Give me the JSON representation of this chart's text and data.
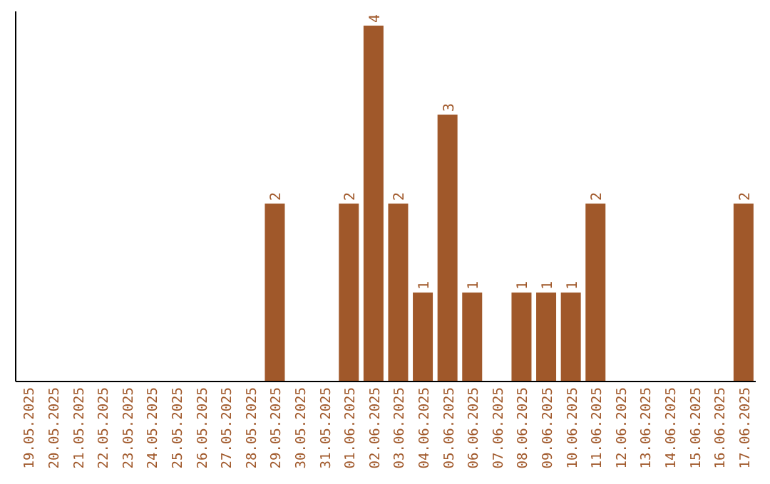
{
  "chart_data": {
    "type": "bar",
    "categories": [
      "19.05.2025",
      "20.05.2025",
      "21.05.2025",
      "22.05.2025",
      "23.05.2025",
      "24.05.2025",
      "25.05.2025",
      "26.05.2025",
      "27.05.2025",
      "28.05.2025",
      "29.05.2025",
      "30.05.2025",
      "31.05.2025",
      "01.06.2025",
      "02.06.2025",
      "03.06.2025",
      "04.06.2025",
      "05.06.2025",
      "06.06.2025",
      "07.06.2025",
      "08.06.2025",
      "09.06.2025",
      "10.06.2025",
      "11.06.2025",
      "12.06.2025",
      "13.06.2025",
      "14.06.2025",
      "15.06.2025",
      "16.06.2025",
      "17.06.2025"
    ],
    "values": [
      0,
      0,
      0,
      0,
      0,
      0,
      0,
      0,
      0,
      0,
      2,
      0,
      0,
      2,
      4,
      2,
      1,
      3,
      1,
      0,
      1,
      1,
      1,
      2,
      0,
      0,
      0,
      0,
      0,
      2
    ],
    "value_labels": [
      null,
      null,
      null,
      null,
      null,
      null,
      null,
      null,
      null,
      null,
      "2",
      null,
      null,
      "2",
      "4",
      "2",
      "1",
      "3",
      "1",
      null,
      "1",
      "1",
      "1",
      "2",
      null,
      null,
      null,
      null,
      null,
      "2"
    ],
    "color": "#a0582a"
  }
}
